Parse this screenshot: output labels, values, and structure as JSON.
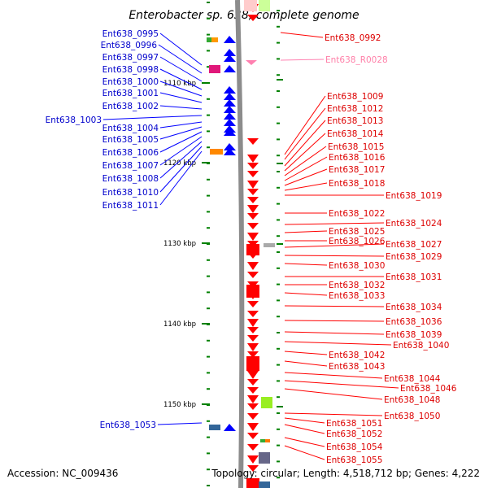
{
  "title": "Enterobacter sp. 638, complete genome",
  "accession": "Accession: NC_009436",
  "topology": "Topology: circular; Length: 4,518,712 bp; Genes: 4,222",
  "colors": {
    "reverse_strand": "#0000ff",
    "forward_strand": "#ff0000",
    "rna": "#ff80b0",
    "backbone": "#8c8c8c",
    "tick": "#008000"
  },
  "scale_labels": [
    {
      "text": "1110 kbp",
      "kbp": 1110
    },
    {
      "text": "1120 kbp",
      "kbp": 1120
    },
    {
      "text": "1130 kbp",
      "kbp": 1130
    },
    {
      "text": "1140 kbp",
      "kbp": 1140
    },
    {
      "text": "1150 kbp",
      "kbp": 1150
    }
  ],
  "left_labels": [
    "Ent638_0995",
    "Ent638_0996",
    "Ent638_0997",
    "Ent638_0998",
    "Ent638_1000",
    "Ent638_1001",
    "Ent638_1002",
    "Ent638_1003",
    "Ent638_1004",
    "Ent638_1005",
    "Ent638_1006",
    "Ent638_1007",
    "Ent638_1008",
    "Ent638_1010",
    "Ent638_1011",
    "Ent638_1053"
  ],
  "right_labels": [
    "Ent638_0992",
    "Ent638_R0028",
    "Ent638_1009",
    "Ent638_1012",
    "Ent638_1013",
    "Ent638_1014",
    "Ent638_1015",
    "Ent638_1016",
    "Ent638_1017",
    "Ent638_1018",
    "Ent638_1019",
    "Ent638_1022",
    "Ent638_1024",
    "Ent638_1025",
    "Ent638_1026",
    "Ent638_1027",
    "Ent638_1029",
    "Ent638_1030",
    "Ent638_1031",
    "Ent638_1032",
    "Ent638_1033",
    "Ent638_1034",
    "Ent638_1036",
    "Ent638_1039",
    "Ent638_1040",
    "Ent638_1042",
    "Ent638_1043",
    "Ent638_1044",
    "Ent638_1046",
    "Ent638_1048",
    "Ent638_1050",
    "Ent638_1051",
    "Ent638_1052",
    "Ent638_1054",
    "Ent638_1055"
  ]
}
